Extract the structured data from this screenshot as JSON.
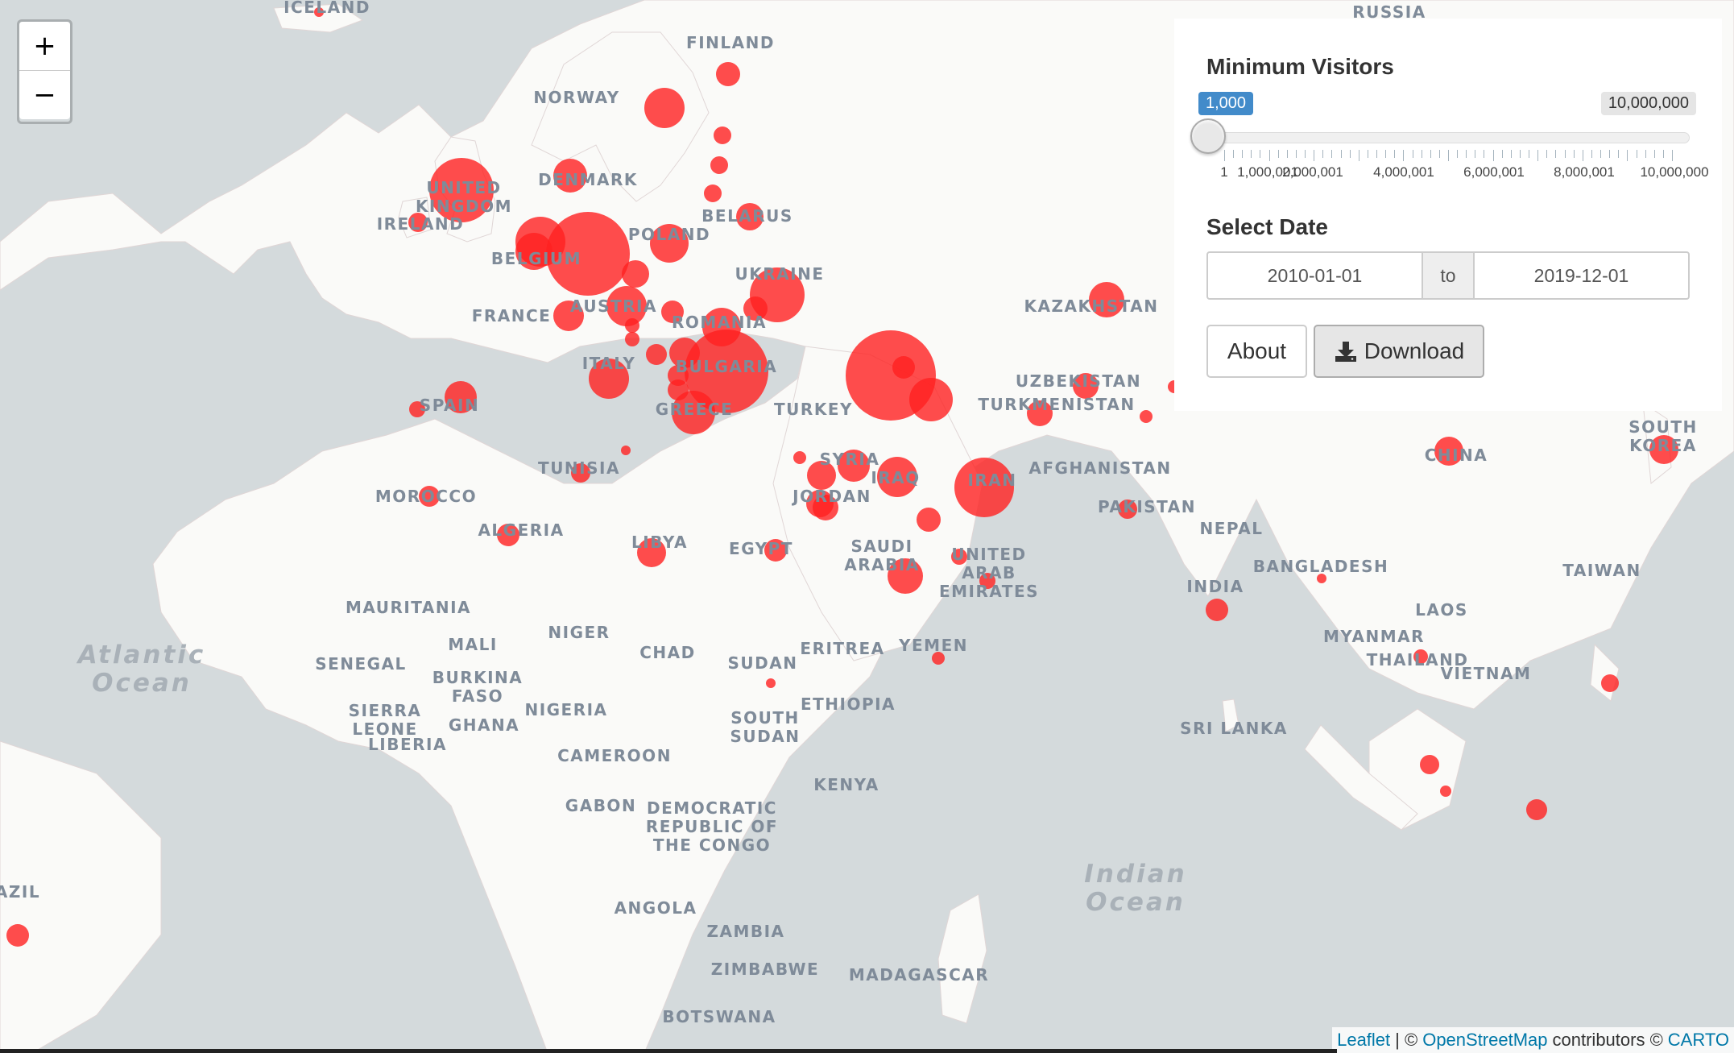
{
  "map": {
    "ocean_color": "#d4dadc",
    "land_color": "#fafaf8",
    "marker_color": "#ff2020",
    "country_labels": [
      "ICELAND",
      "RUSSIA",
      "FINLAND",
      "NORWAY",
      "DENMARK",
      "UNITED KINGDOM",
      "IRELAND",
      "BELARUS",
      "POLAND",
      "BELGIUM",
      "UKRAINE",
      "AUSTRIA",
      "FRANCE",
      "ROMANIA",
      "ITALY",
      "BULGARIA",
      "SPAIN",
      "GREECE",
      "TURKEY",
      "KAZAKHSTAN",
      "UZBEKISTAN",
      "TURKMENISTAN",
      "SOUTH KOREA",
      "SYRIA",
      "IRAQ",
      "IRAN",
      "AFGHANISTAN",
      "TUNISIA",
      "MOROCCO",
      "JORDAN",
      "PAKISTAN",
      "CHINA",
      "ALGERIA",
      "LIBYA",
      "EGYPT",
      "SAUDI ARABIA",
      "UNITED ARAB EMIRATES",
      "NEPAL",
      "BANGLADESH",
      "INDIA",
      "TAIWAN",
      "MAURITANIA",
      "NIGER",
      "MALI",
      "CHAD",
      "ERITREA",
      "SENEGAL",
      "SUDAN",
      "BURKINA FASO",
      "YEMEN",
      "MYANMAR",
      "LAOS",
      "THAILAND",
      "VIETNAM",
      "SIERRA LEONE",
      "GHANA",
      "NIGERIA",
      "ETHIOPIA",
      "LIBERIA",
      "SOUTH SUDAN",
      "SRI LANKA",
      "CAMEROON",
      "KENYA",
      "GABON",
      "DEMOCRATIC REPUBLIC OF THE CONGO",
      "ANGOLA",
      "ZAMBIA",
      "ZIMBABWE",
      "MADAGASCAR",
      "BOTSWANA",
      "AZIL"
    ],
    "ocean_labels": [
      "Atlantic Ocean",
      "Indian Ocean"
    ]
  },
  "zoom": {
    "in_label": "+",
    "out_label": "−"
  },
  "controls": {
    "min_visitors_label": "Minimum Visitors",
    "slider": {
      "min": 1,
      "max": 10000000,
      "value": 1000,
      "value_label": "1,000",
      "max_label": "10,000,000",
      "tick_labels": [
        "1",
        "1,000,001",
        "2,000,001",
        "4,000,001",
        "6,000,001",
        "8,000,001",
        "10,000,000"
      ]
    },
    "select_date_label": "Select Date",
    "date_from": "2010-01-01",
    "date_sep": "to",
    "date_to": "2019-12-01",
    "about_label": "About",
    "download_label": "Download"
  },
  "attribution": {
    "leaflet": "Leaflet",
    "sep1": "| ©",
    "osm": "OpenStreetMap",
    "contrib": "contributors ©",
    "carto": "CARTO"
  }
}
